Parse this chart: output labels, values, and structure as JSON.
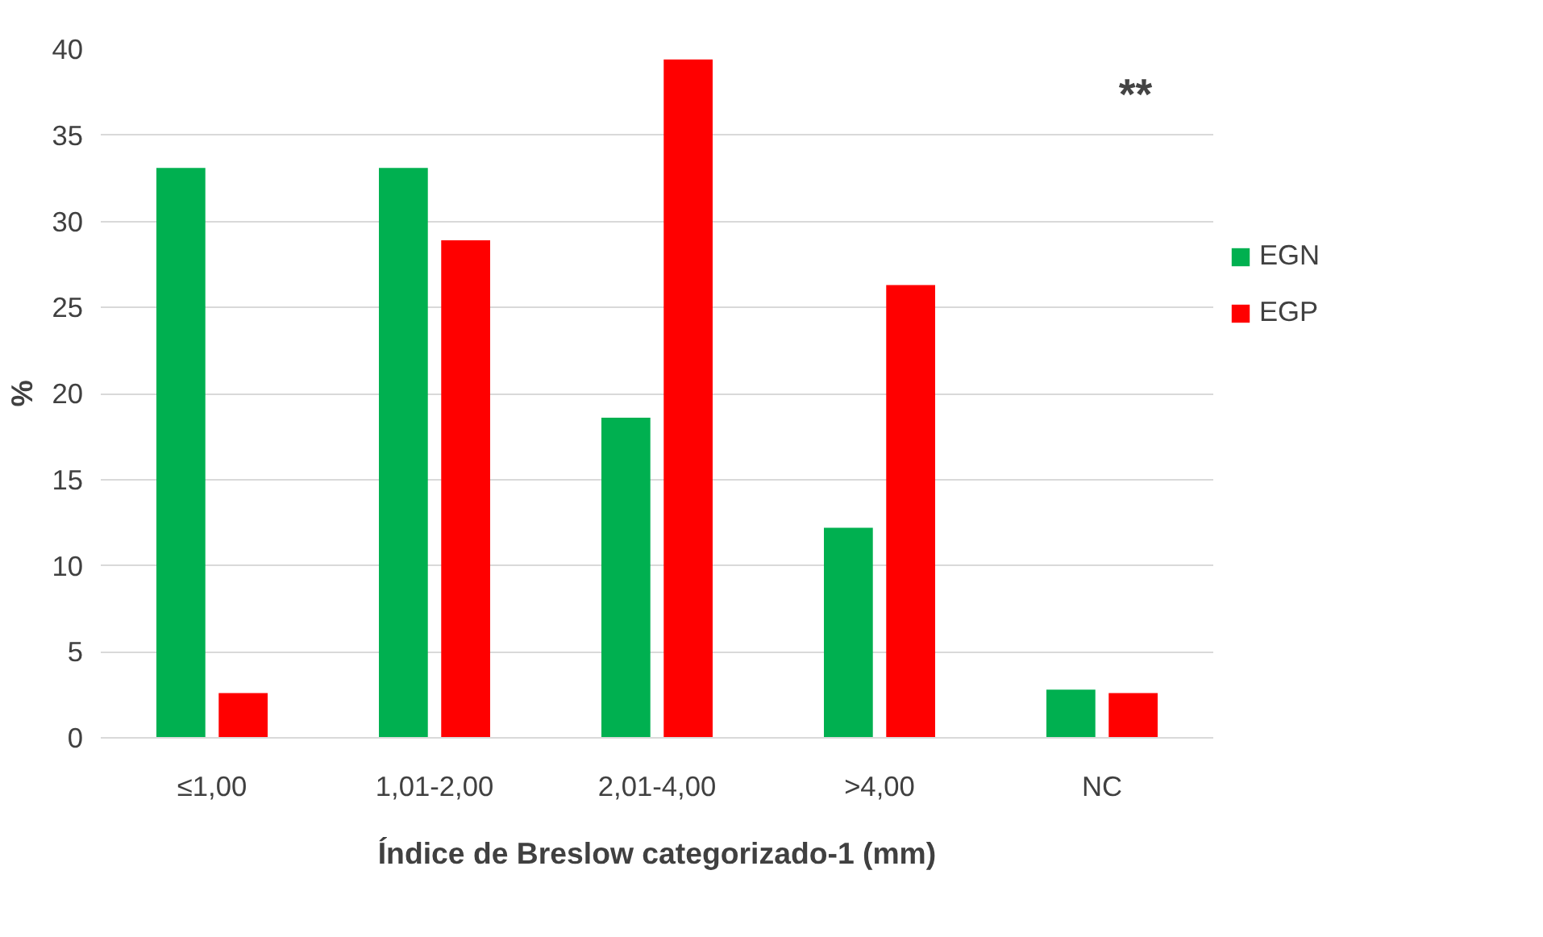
{
  "chart_data": {
    "type": "bar",
    "xlabel": "Índice de Breslow categorizado-1 (mm)",
    "ylabel": "%",
    "categories": [
      "≤1,00",
      "1,01-2,00",
      "2,01-4,00",
      ">4,00",
      "NC"
    ],
    "series": [
      {
        "name": "EGN",
        "color": "#00b050",
        "values": [
          33.1,
          33.1,
          18.6,
          12.2,
          2.8
        ]
      },
      {
        "name": "EGP",
        "color": "#ff0000",
        "values": [
          2.6,
          28.9,
          39.4,
          26.3,
          2.6
        ]
      }
    ],
    "ylim": [
      0,
      40
    ],
    "yticks": [
      0,
      5,
      10,
      15,
      20,
      25,
      30,
      35,
      40
    ],
    "grid": "y",
    "legend": "right",
    "annotations": [
      "**"
    ]
  }
}
